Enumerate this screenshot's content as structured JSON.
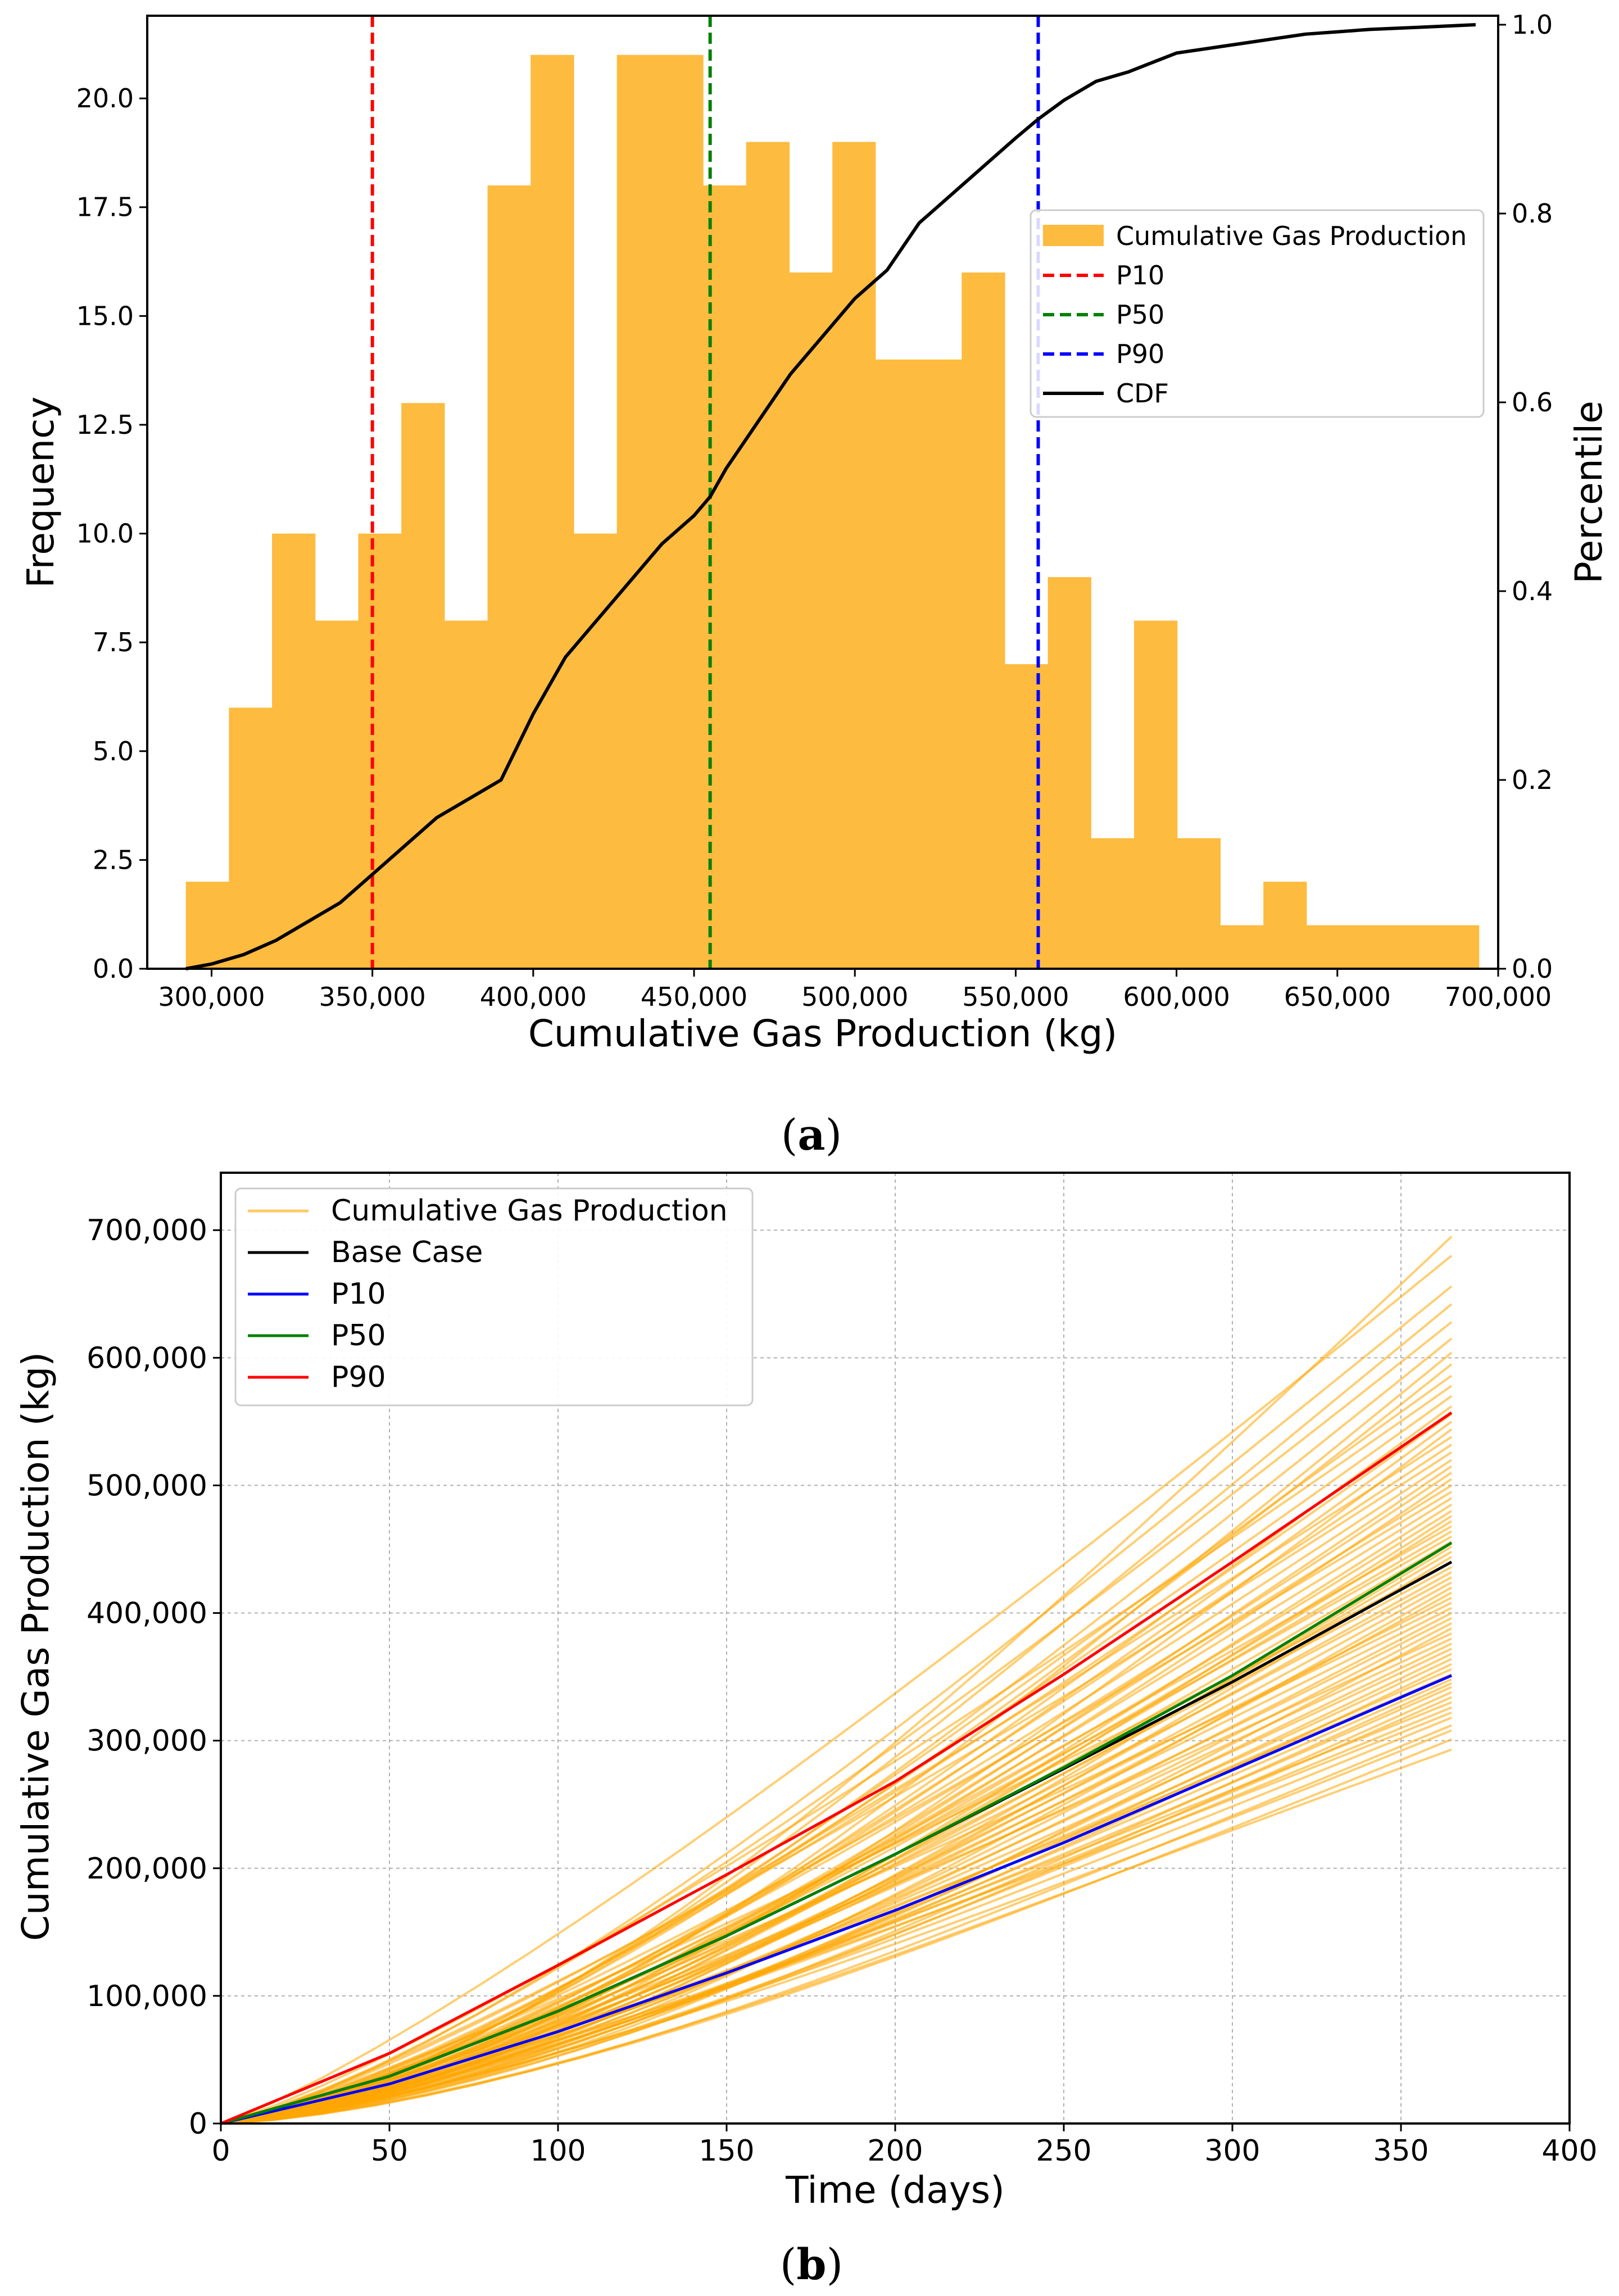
{
  "chart_data": [
    {
      "id": "a",
      "type": "bar",
      "caption": {
        "open": "(",
        "letter": "a",
        "close": ")"
      },
      "xlabel": "Cumulative Gas Production (kg)",
      "ylabel": "Frequency",
      "y2label": "Percentile",
      "xlim": [
        280000,
        700000
      ],
      "ylim": [
        0,
        21.9
      ],
      "y2lim": [
        0,
        1.0
      ],
      "xticks": [
        300000,
        350000,
        400000,
        450000,
        500000,
        550000,
        600000,
        650000,
        700000
      ],
      "xtick_labels": [
        "300,000",
        "350,000",
        "400,000",
        "450,000",
        "500,000",
        "550,000",
        "600,000",
        "650,000",
        "700,000"
      ],
      "yticks": [
        0,
        2.5,
        5,
        7.5,
        10,
        12.5,
        15,
        17.5,
        20
      ],
      "ytick_labels": [
        "0.0",
        "2.5",
        "5.0",
        "7.5",
        "10.0",
        "12.5",
        "15.0",
        "17.5",
        "20.0"
      ],
      "y2ticks": [
        0,
        0.2,
        0.4,
        0.6,
        0.8,
        1.0
      ],
      "y2tick_labels": [
        "0.0",
        "0.2",
        "0.4",
        "0.6",
        "0.8",
        "1.0"
      ],
      "grid": false,
      "legend_position": "center-right",
      "bin_start": 292000,
      "bin_width": 13400,
      "histogram_name": "Cumulative Gas Production",
      "histogram_color": "#fdbb40",
      "bin_counts": [
        2,
        6,
        10,
        8,
        10,
        13,
        8,
        18,
        21,
        10,
        21,
        21,
        18,
        19,
        16,
        19,
        14,
        14,
        16,
        7,
        9,
        3,
        8,
        3,
        1,
        2,
        1,
        1,
        1,
        1
      ],
      "percentile_lines": [
        {
          "name": "P10",
          "value": 350000,
          "color": "#ff0000"
        },
        {
          "name": "P50",
          "value": 455000,
          "color": "#008000"
        },
        {
          "name": "P90",
          "value": 557000,
          "color": "#0000ff"
        }
      ],
      "cdf": {
        "name": "CDF",
        "color": "#000000",
        "x": [
          292000,
          300000,
          310000,
          320000,
          330000,
          340000,
          350000,
          360000,
          370000,
          380000,
          390000,
          400000,
          410000,
          420000,
          430000,
          440000,
          450000,
          455000,
          460000,
          470000,
          480000,
          490000,
          500000,
          510000,
          520000,
          530000,
          540000,
          550000,
          557000,
          565000,
          575000,
          585000,
          600000,
          620000,
          640000,
          660000,
          680000,
          693000
        ],
        "y": [
          0.0,
          0.005,
          0.015,
          0.03,
          0.05,
          0.07,
          0.1,
          0.13,
          0.16,
          0.18,
          0.2,
          0.27,
          0.33,
          0.37,
          0.41,
          0.45,
          0.48,
          0.5,
          0.53,
          0.58,
          0.63,
          0.67,
          0.71,
          0.74,
          0.79,
          0.82,
          0.85,
          0.88,
          0.9,
          0.92,
          0.94,
          0.95,
          0.97,
          0.98,
          0.99,
          0.995,
          0.998,
          1.0
        ]
      }
    },
    {
      "id": "b",
      "type": "line",
      "caption": {
        "open": "(",
        "letter": "b",
        "close": ")"
      },
      "xlabel": "Time (days)",
      "ylabel": "Cumulative Gas Production (kg)",
      "xlim": [
        0,
        400
      ],
      "ylim": [
        0,
        745000
      ],
      "xticks": [
        0,
        50,
        100,
        150,
        200,
        250,
        300,
        350,
        400
      ],
      "xtick_labels": [
        "0",
        "50",
        "100",
        "150",
        "200",
        "250",
        "300",
        "350",
        "400"
      ],
      "yticks": [
        0,
        100000,
        200000,
        300000,
        400000,
        500000,
        600000,
        700000
      ],
      "ytick_labels": [
        "0",
        "100,000",
        "200,000",
        "300,000",
        "400,000",
        "500,000",
        "600,000",
        "700,000"
      ],
      "grid": true,
      "legend_position": "top-left",
      "time_end": 365,
      "ensemble": {
        "name": "Cumulative Gas Production",
        "color": "#ffa500",
        "final_values": [
          293000,
          301000,
          308000,
          312000,
          318000,
          322000,
          326000,
          330000,
          334000,
          338000,
          342000,
          345000,
          348000,
          352000,
          356000,
          360000,
          364000,
          368000,
          372000,
          376000,
          380000,
          384000,
          388000,
          392000,
          396000,
          400000,
          404000,
          408000,
          412000,
          416000,
          420000,
          424000,
          428000,
          432000,
          436000,
          440000,
          444000,
          448000,
          452000,
          456000,
          460000,
          464000,
          468000,
          472000,
          476000,
          480000,
          485000,
          490000,
          495000,
          500000,
          505000,
          510000,
          515000,
          520000,
          526000,
          532000,
          538000,
          544000,
          550000,
          556000,
          562000,
          570000,
          578000,
          586000,
          595000,
          604000,
          615000,
          628000,
          642000,
          656000,
          680000,
          695000
        ]
      },
      "series": [
        {
          "name": "Base Case",
          "color": "#000000",
          "x": [
            0,
            50,
            100,
            150,
            200,
            250,
            300,
            365
          ],
          "y": [
            0,
            37000,
            88000,
            147000,
            211000,
            278000,
            346000,
            440000
          ]
        },
        {
          "name": "P10",
          "color": "#0000ff",
          "x": [
            0,
            50,
            100,
            150,
            200,
            250,
            300,
            365
          ],
          "y": [
            0,
            31000,
            72000,
            118000,
            167000,
            220000,
            277000,
            351000
          ]
        },
        {
          "name": "P50",
          "color": "#008000",
          "x": [
            0,
            50,
            100,
            150,
            200,
            250,
            300,
            365
          ],
          "y": [
            0,
            37000,
            88000,
            147000,
            211000,
            279000,
            351000,
            455000
          ]
        },
        {
          "name": "P90",
          "color": "#ff0000",
          "x": [
            0,
            50,
            100,
            150,
            200,
            250,
            300,
            365
          ],
          "y": [
            0,
            55000,
            124000,
            195000,
            268000,
            352000,
            440000,
            557000
          ]
        }
      ]
    }
  ]
}
